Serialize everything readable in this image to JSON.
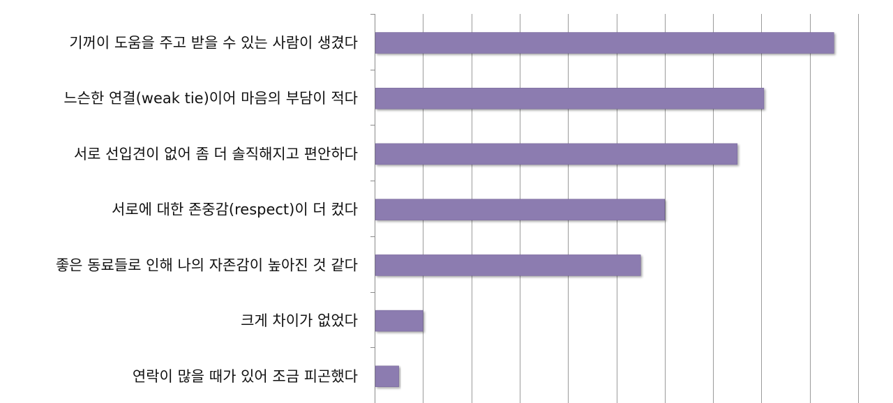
{
  "chart_data": {
    "type": "bar",
    "orientation": "horizontal",
    "categories": [
      "기꺼이 도움을 주고 받을 수 있는 사람이 생겼다",
      "느슨한 연결(weak tie)이어 마음의 부담이 적다",
      "서로 선입견이 없어 좀 더 솔직해지고 편안하다",
      "서로에 대한 존중감(respect)이 더 컸다",
      "좋은 동료들로 인해 나의 자존감이 높아진 것 같다",
      "크게 차이가 없었다",
      "연락이 많을 때가 있어 조금 피곤했다"
    ],
    "values": [
      19.0,
      16.1,
      15.0,
      12.0,
      11.0,
      2.0,
      1.0
    ],
    "xlim": [
      0,
      20
    ],
    "x_tick_step": 2,
    "grid": true,
    "title": "",
    "xlabel": "",
    "ylabel": "",
    "colors": {
      "bar_fill": "#8c7bb0",
      "bar_edge": "#6f5f94",
      "grid": "#9a9a9a",
      "axis": "#8a8a8a",
      "label": "#111111"
    }
  }
}
